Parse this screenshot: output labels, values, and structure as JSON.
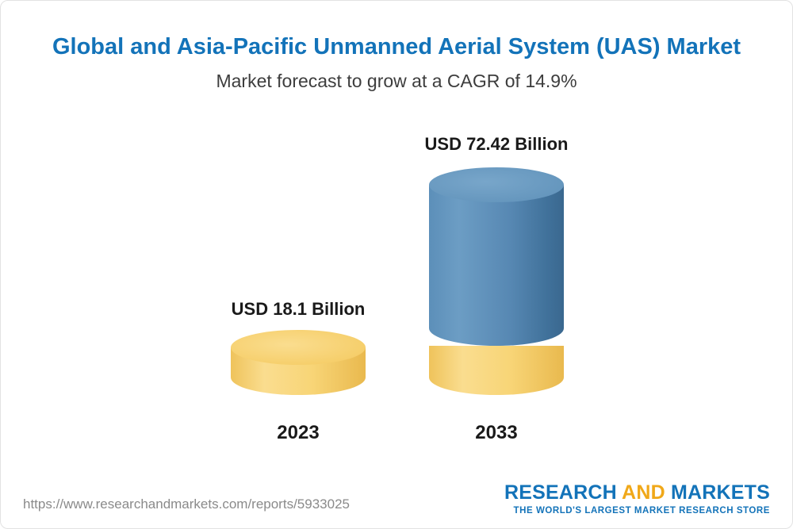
{
  "chart_data": {
    "type": "bar",
    "title": "Global and Asia-Pacific Unmanned Aerial System (UAS) Market",
    "subtitle": "Market forecast to grow at a CAGR of 14.9%",
    "cagr_percent": 14.9,
    "unit": "USD Billion",
    "categories": [
      "2023",
      "2033"
    ],
    "values": [
      18.1,
      72.42
    ],
    "bars": [
      {
        "category": "2023",
        "value": 18.1,
        "value_label": "USD 18.1 Billion",
        "color": "#F7D173"
      },
      {
        "category": "2033",
        "value": 72.42,
        "value_label": "USD 72.42 Billion",
        "color": "#5788B3",
        "base_color": "#F7D173"
      }
    ],
    "legend": "none",
    "grid": false,
    "style": "3d-cylinder"
  },
  "footer": {
    "url": "https://www.researchandmarkets.com/reports/5933025",
    "logo": {
      "research": "RESEARCH",
      "and": " AND ",
      "markets": "MARKETS",
      "tagline": "THE WORLD'S LARGEST MARKET RESEARCH STORE"
    }
  },
  "colors": {
    "accent_blue": "#1373B9",
    "accent_gold": "#F0A819",
    "bar_blue": "#5788B3",
    "bar_yellow": "#F7D173",
    "text_dark": "#1A1A1A",
    "muted_gray": "#8A8A8A"
  }
}
